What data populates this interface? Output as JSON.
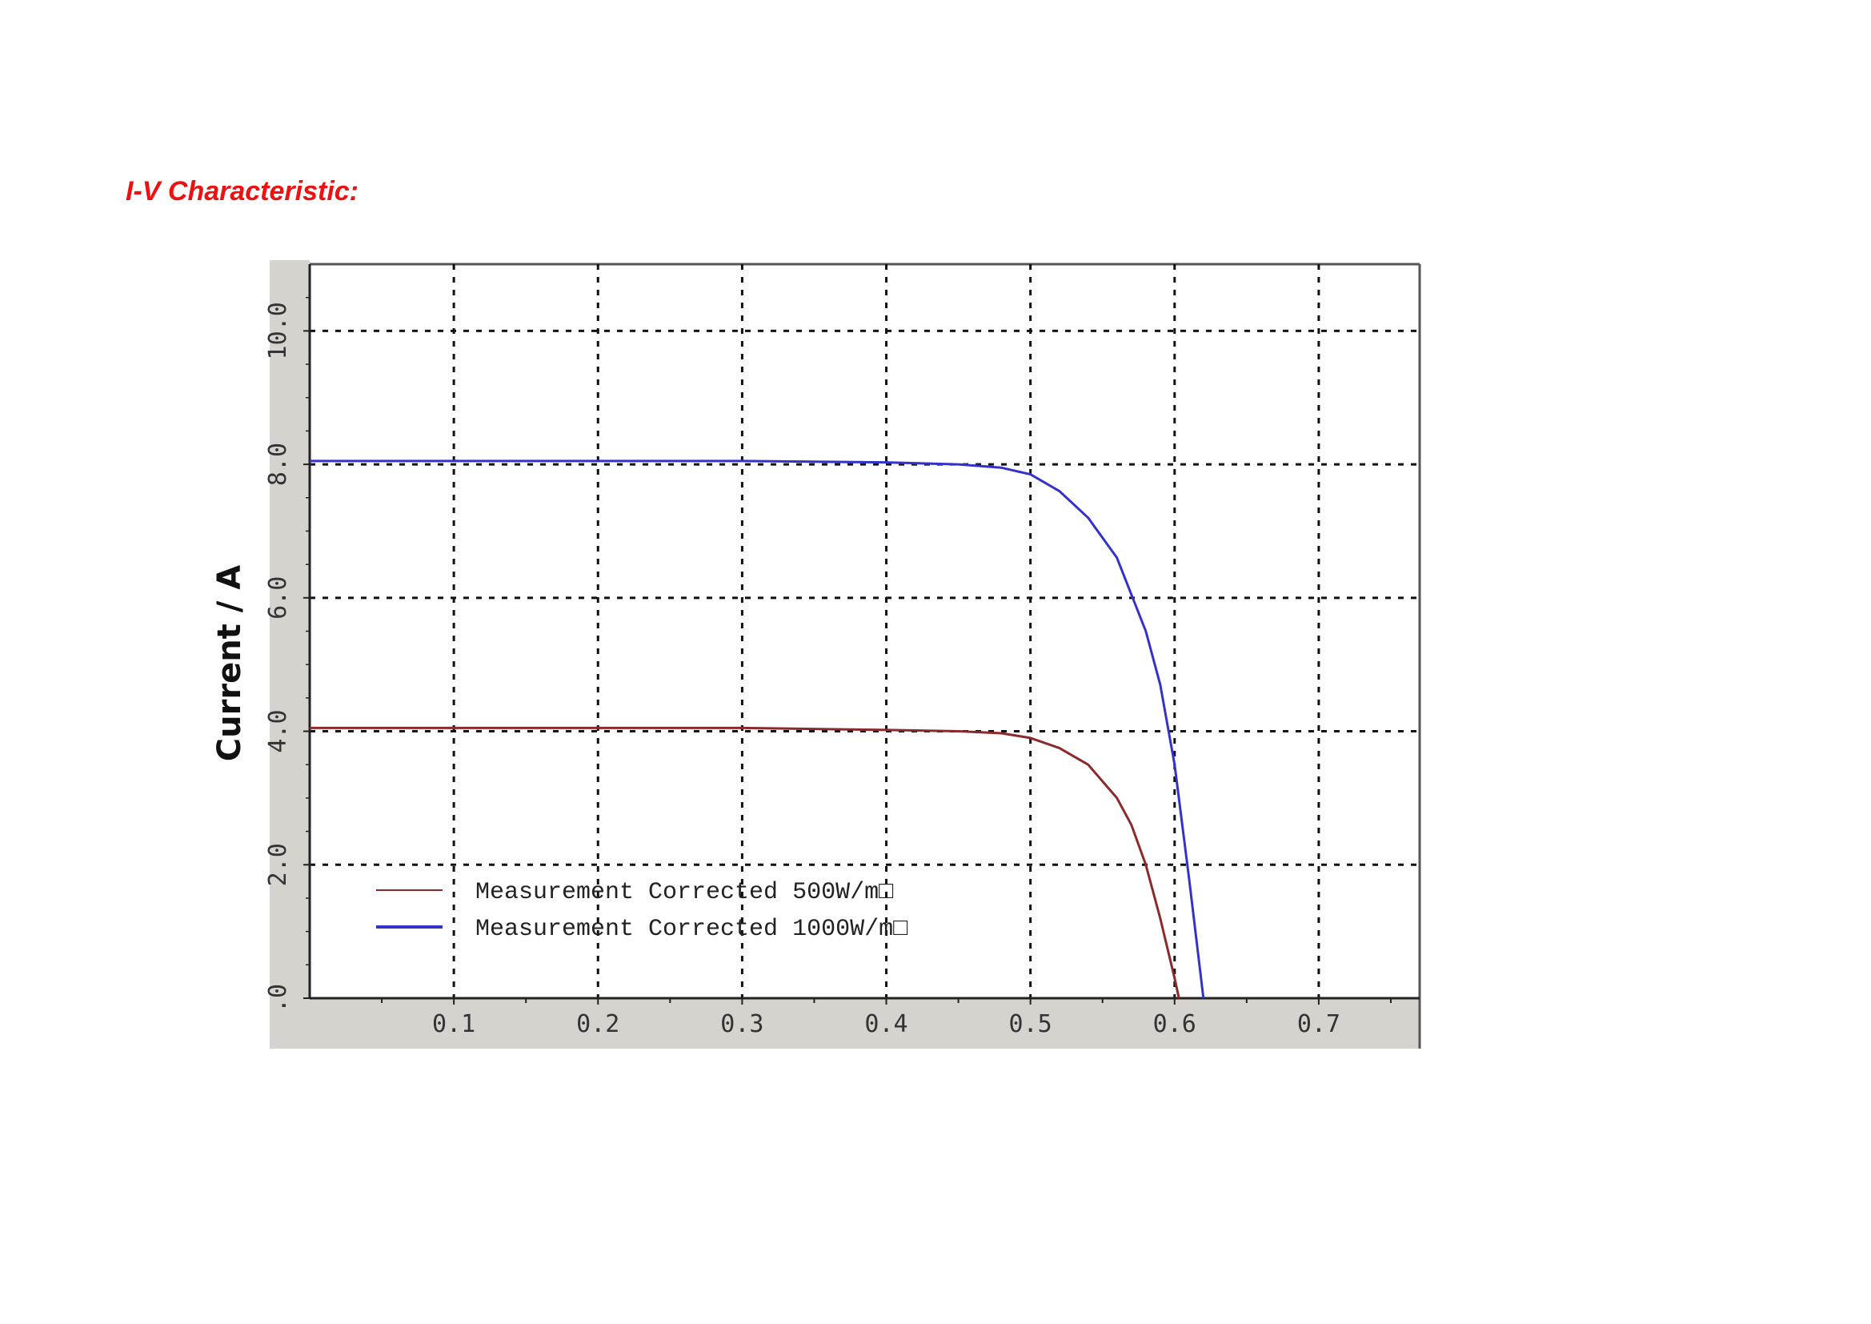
{
  "page": {
    "heading": "I-V Characteristic:"
  },
  "chart_data": {
    "type": "line",
    "title": "",
    "xlabel": "",
    "ylabel": "Current / A",
    "xlim": [
      0.0,
      0.77
    ],
    "ylim": [
      0.0,
      11.0
    ],
    "grid": true,
    "legend_position": "bottom-left",
    "x_ticks": [
      "0.1",
      "0.2",
      "0.3",
      "0.4",
      "0.5",
      "0.6",
      "0.7"
    ],
    "x_tick_values": [
      0.1,
      0.2,
      0.3,
      0.4,
      0.5,
      0.6,
      0.7
    ],
    "y_ticks": [
      ".0",
      "2.0",
      "4.0",
      "6.0",
      "8.0",
      "10.0"
    ],
    "y_tick_values": [
      0.0,
      2.0,
      4.0,
      6.0,
      8.0,
      10.0
    ],
    "series": [
      {
        "name": "Measurement Corrected 500W/m□",
        "color": "#8b2a2a",
        "x": [
          0.0,
          0.1,
          0.2,
          0.3,
          0.4,
          0.45,
          0.48,
          0.5,
          0.52,
          0.54,
          0.56,
          0.57,
          0.58,
          0.59,
          0.6,
          0.603
        ],
        "y": [
          4.05,
          4.05,
          4.05,
          4.05,
          4.02,
          4.0,
          3.97,
          3.9,
          3.75,
          3.5,
          3.0,
          2.6,
          2.0,
          1.2,
          0.3,
          0.0
        ]
      },
      {
        "name": "Measurement Corrected 1000W/m□",
        "color": "#3333cc",
        "x": [
          0.0,
          0.1,
          0.2,
          0.3,
          0.4,
          0.45,
          0.48,
          0.5,
          0.52,
          0.54,
          0.56,
          0.58,
          0.59,
          0.6,
          0.61,
          0.62
        ],
        "y": [
          8.05,
          8.05,
          8.05,
          8.05,
          8.03,
          8.0,
          7.95,
          7.85,
          7.6,
          7.2,
          6.6,
          5.5,
          4.7,
          3.5,
          1.8,
          0.0
        ]
      }
    ]
  }
}
